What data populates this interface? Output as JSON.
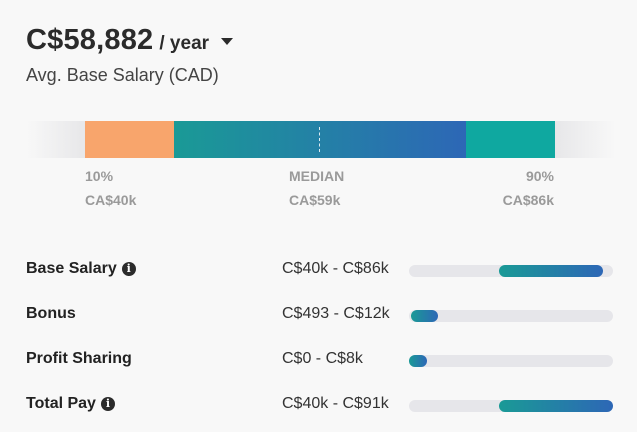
{
  "salary": {
    "amount": "C$58,882",
    "period": "/ year",
    "subtitle": "Avg. Base Salary (CAD)"
  },
  "range_bar": {
    "p10_label": "10%",
    "p10_value": "CA$40k",
    "median_label": "MEDIAN",
    "median_value": "CA$59k",
    "p90_label": "90%",
    "p90_value": "CA$86k"
  },
  "breakdown": [
    {
      "label": "Base Salary",
      "range": "C$40k - C$86k",
      "info": true
    },
    {
      "label": "Bonus",
      "range": "C$493 - C$12k",
      "info": false
    },
    {
      "label": "Profit Sharing",
      "range": "C$0 - C$8k",
      "info": false
    },
    {
      "label": "Total Pay",
      "range": "C$40k - C$91k",
      "info": true
    }
  ],
  "icons": {
    "dropdown": "caret-down-icon",
    "info": "info-circle-icon"
  },
  "colors": {
    "p10_segment": "#f8a56c",
    "median_gradient_start": "#1a9a96",
    "median_gradient_end": "#2d67b6",
    "p90_segment": "#0fa8a0",
    "track": "#e6e6ea"
  }
}
